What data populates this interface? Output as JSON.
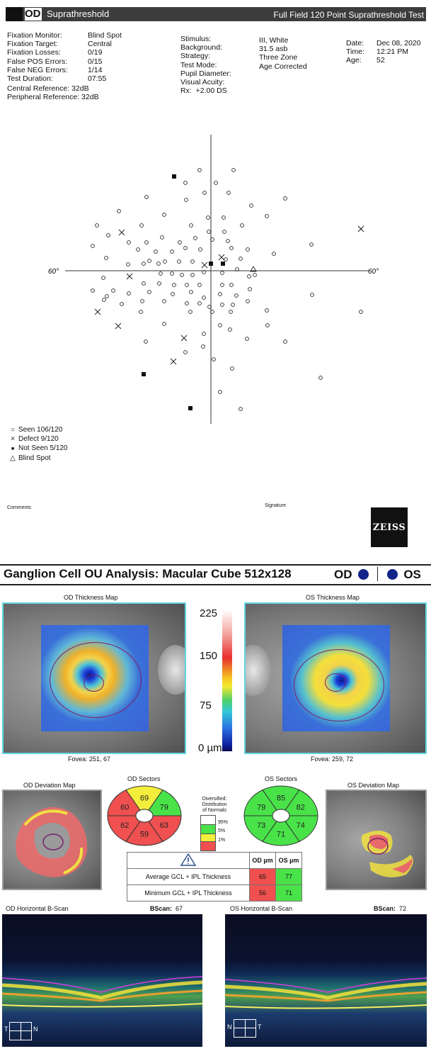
{
  "field_report": {
    "eye": "OD",
    "subtitle": "Suprathreshold",
    "test_name": "Full Field 120 Point Suprathreshold Test",
    "col1": [
      {
        "label": "Fixation Monitor:",
        "value": "Blind Spot"
      },
      {
        "label": "Fixation Target:",
        "value": "Central"
      },
      {
        "label": "Fixation Losses:",
        "value": "0/19"
      },
      {
        "label": "False POS Errors:",
        "value": "0/15"
      },
      {
        "label": "False NEG Errors:",
        "value": "1/14"
      },
      {
        "label": "Test Duration:",
        "value": "07:55"
      }
    ],
    "central_ref": "Central Reference: 32dB",
    "peripheral_ref": "Peripheral Reference: 32dB",
    "col2": [
      {
        "label": "Stimulus:",
        "value": "III, White"
      },
      {
        "label": "Background:",
        "value": "31.5 asb"
      },
      {
        "label": "Strategy:",
        "value": "Three Zone"
      },
      {
        "label": "Test Mode:",
        "value": "Age Corrected"
      },
      {
        "label": "Pupil Diameter:",
        "value": ""
      },
      {
        "label": "Visual Acuity:",
        "value": ""
      },
      {
        "label": "Rx:",
        "value": "+2.00 DS"
      }
    ],
    "col3": [
      {
        "label": "Date:",
        "value": "Dec 08, 2020"
      },
      {
        "label": "Time:",
        "value": "12:21 PM"
      },
      {
        "label": "Age:",
        "value": "52"
      }
    ],
    "axis_left": "60°",
    "axis_right": "60°",
    "legend": [
      {
        "symbol": "○",
        "text": "Seen 106/120"
      },
      {
        "symbol": "×",
        "text": "Defect 9/120"
      },
      {
        "symbol": "■",
        "text": "Not Seen 5/120"
      },
      {
        "symbol": "△",
        "text": "Blind Spot"
      }
    ],
    "comments_label": "Comments",
    "signature_label": "Signature",
    "logo": "ZEISS"
  },
  "ganglion": {
    "title": "Ganglion Cell OU Analysis: Macular Cube 512x128",
    "od": "OD",
    "os": "OS",
    "od_thickness_title": "OD Thickness Map",
    "os_thickness_title": "OS Thickness Map",
    "scale_labels": [
      "225",
      "150",
      "75",
      "0 µm"
    ],
    "od_fovea": "Fovea: 251, 67",
    "os_fovea": "Fovea: 259, 72",
    "od_deviation_title": "OD Deviation Map",
    "os_deviation_title": "OS Deviation Map",
    "od_sectors_title": "OD Sectors",
    "os_sectors_title": "OS Sectors",
    "od_sectors": {
      "top": "69",
      "upper_right": "79",
      "lower_right": "63",
      "bottom": "59",
      "lower_left": "62",
      "upper_left": "60"
    },
    "os_sectors": {
      "top": "85",
      "upper_right": "82",
      "lower_right": "74",
      "bottom": "71",
      "lower_left": "73",
      "upper_left": "79"
    },
    "distribution_title": [
      "Diversified:",
      "Distribution",
      "of Normals"
    ],
    "distribution_levels": [
      "95%",
      "5%",
      "1%"
    ],
    "table_headers": [
      "OD µm",
      "OS µm"
    ],
    "table_rows": [
      {
        "label": "Average GCL + IPL Thickness",
        "od": "65",
        "os": "77"
      },
      {
        "label": "Minimum GCL + IPL Thickness",
        "od": "56",
        "os": "71"
      }
    ],
    "od_bscan_title": "OD Horizontal B-Scan",
    "os_bscan_title": "OS Horizontal B-Scan",
    "bscan_label": "BScan:",
    "od_bscan_value": "67",
    "os_bscan_value": "72",
    "od_orient": {
      "left": "T",
      "right": "N"
    },
    "os_orient": {
      "left": "N",
      "right": "T"
    },
    "colors": {
      "green": "#49e349",
      "yellow": "#f3ee3c",
      "red": "#f05050",
      "frame": "#5ed6e0",
      "od_dot": "#12238a"
    }
  }
}
